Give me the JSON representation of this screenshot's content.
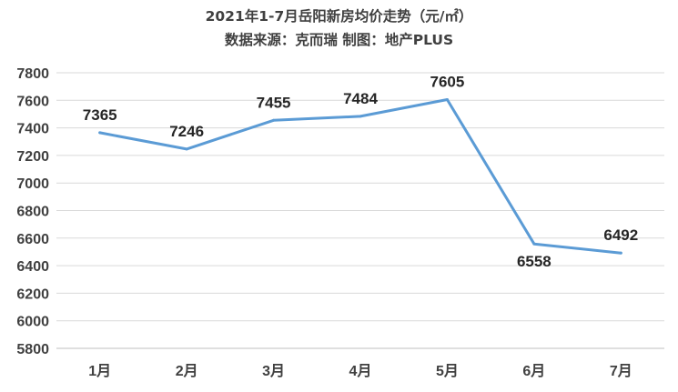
{
  "chart_data": {
    "type": "line",
    "title": "2021年1-7月岳阳新房均价走势（元/㎡）",
    "subtitle": "数据来源：克而瑞 制图：地产PLUS",
    "categories": [
      "1月",
      "2月",
      "3月",
      "4月",
      "5月",
      "6月",
      "7月"
    ],
    "series": [
      {
        "values": [
          7365,
          7246,
          7455,
          7484,
          7605,
          6558,
          6492
        ]
      }
    ],
    "data_labels": [
      "7365",
      "7246",
      "7455",
      "7484",
      "7605",
      "6558",
      "6492"
    ],
    "y_ticks": [
      "5800",
      "6000",
      "6200",
      "6400",
      "6600",
      "6800",
      "7000",
      "7200",
      "7400",
      "7600",
      "7800"
    ],
    "ylim": [
      5800,
      7800
    ],
    "xlabel": "",
    "ylabel": "",
    "grid": true,
    "line_color": "#5b9bd5",
    "grid_color": "#d9d9d9"
  }
}
